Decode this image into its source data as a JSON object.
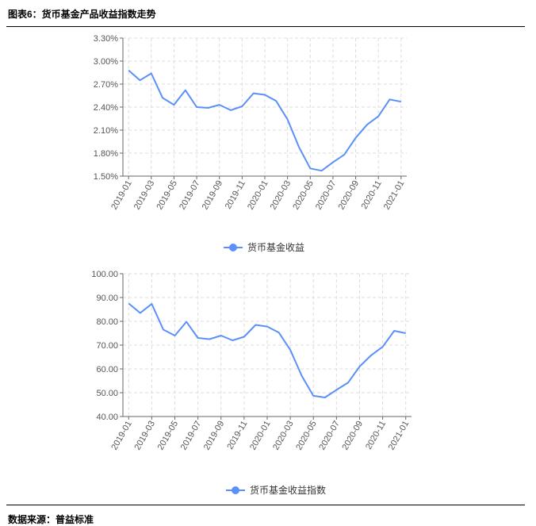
{
  "header": {
    "title": "图表6：货币基金产品收益指数走势"
  },
  "source": "数据来源：普益标准",
  "chart_data": [
    {
      "type": "line",
      "categories": [
        "2019-01",
        null,
        "2019-03",
        null,
        "2019-05",
        null,
        "2019-07",
        null,
        "2019-09",
        null,
        "2019-11",
        null,
        "2020-01",
        null,
        "2020-03",
        null,
        "2020-05",
        null,
        "2020-07",
        null,
        "2020-09",
        null,
        "2020-11",
        null,
        "2021-01"
      ],
      "series": [
        {
          "name": "货币基金收益",
          "color": "#5b8ff9",
          "values": [
            2.88,
            2.75,
            2.84,
            2.52,
            2.43,
            2.62,
            2.4,
            2.39,
            2.43,
            2.36,
            2.41,
            2.58,
            2.56,
            2.48,
            2.24,
            1.88,
            1.6,
            1.57,
            1.68,
            1.78,
            2.0,
            2.17,
            2.28,
            2.5,
            2.47
          ]
        }
      ],
      "ylim": [
        1.5,
        3.3
      ],
      "yticks": [
        {
          "value": 1.5,
          "label": "1.50%"
        },
        {
          "value": 1.8,
          "label": "1.80%"
        },
        {
          "value": 2.1,
          "label": "2.10%"
        },
        {
          "value": 2.4,
          "label": "2.40%"
        },
        {
          "value": 2.7,
          "label": "2.70%"
        },
        {
          "value": 3.0,
          "label": "3.00%"
        },
        {
          "value": 3.3,
          "label": "3.30%"
        }
      ],
      "grid": true
    },
    {
      "type": "line",
      "categories": [
        "2019-01",
        null,
        "2019-03",
        null,
        "2019-05",
        null,
        "2019-07",
        null,
        "2019-09",
        null,
        "2019-11",
        null,
        "2020-01",
        null,
        "2020-03",
        null,
        "2020-05",
        null,
        "2020-07",
        null,
        "2020-09",
        null,
        "2020-11",
        null,
        "2021-01"
      ],
      "series": [
        {
          "name": "货币基金收益指数",
          "color": "#5b8ff9",
          "values": [
            87.5,
            83.5,
            87.3,
            76.5,
            74.0,
            79.8,
            73.0,
            72.5,
            74.0,
            72.0,
            73.5,
            78.5,
            77.8,
            75.3,
            68.0,
            57.0,
            48.7,
            48.0,
            51.2,
            54.2,
            61.0,
            65.7,
            69.3,
            76.0,
            75.0
          ]
        }
      ],
      "ylim": [
        40,
        100
      ],
      "yticks": [
        {
          "value": 40,
          "label": "40.00"
        },
        {
          "value": 50,
          "label": "50.00"
        },
        {
          "value": 60,
          "label": "60.00"
        },
        {
          "value": 70,
          "label": "70.00"
        },
        {
          "value": 80,
          "label": "80.00"
        },
        {
          "value": 90,
          "label": "90.00"
        },
        {
          "value": 100,
          "label": "100.00"
        }
      ],
      "grid": true
    }
  ]
}
